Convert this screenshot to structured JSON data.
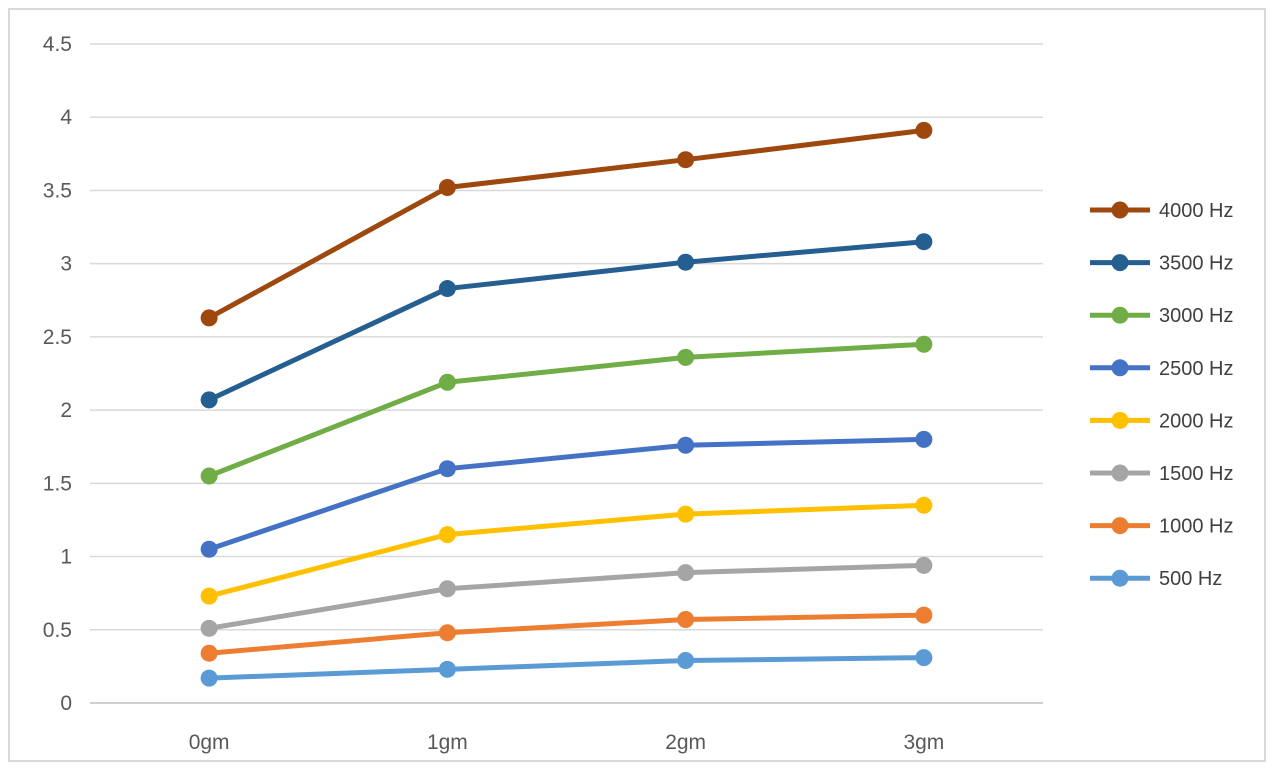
{
  "chart_data": {
    "type": "line",
    "title": "",
    "xlabel": "",
    "ylabel": "",
    "categories": [
      "0gm",
      "1gm",
      "2gm",
      "3gm"
    ],
    "ylim": [
      0,
      4.5
    ],
    "y_ticks": [
      "0",
      "0.5",
      "1",
      "1.5",
      "2",
      "2.5",
      "3",
      "3.5",
      "4",
      "4.5"
    ],
    "grid": "horizontal",
    "legend_position": "right",
    "series": [
      {
        "name": "4000 Hz",
        "color": "#9e480e",
        "values": [
          2.63,
          3.52,
          3.71,
          3.91
        ]
      },
      {
        "name": "3500 Hz",
        "color": "#255e91",
        "values": [
          2.07,
          2.83,
          3.01,
          3.15
        ]
      },
      {
        "name": "3000 Hz",
        "color": "#70ad47",
        "values": [
          1.55,
          2.19,
          2.36,
          2.45
        ]
      },
      {
        "name": "2500 Hz",
        "color": "#4472c4",
        "values": [
          1.05,
          1.6,
          1.76,
          1.8
        ]
      },
      {
        "name": "2000 Hz",
        "color": "#ffc000",
        "values": [
          0.73,
          1.15,
          1.29,
          1.35
        ]
      },
      {
        "name": "1500 Hz",
        "color": "#a5a5a5",
        "values": [
          0.51,
          0.78,
          0.89,
          0.94
        ]
      },
      {
        "name": "1000 Hz",
        "color": "#ed7d31",
        "values": [
          0.34,
          0.48,
          0.57,
          0.6
        ]
      },
      {
        "name": "500 Hz",
        "color": "#5b9bd5",
        "values": [
          0.17,
          0.23,
          0.29,
          0.31
        ]
      }
    ]
  }
}
